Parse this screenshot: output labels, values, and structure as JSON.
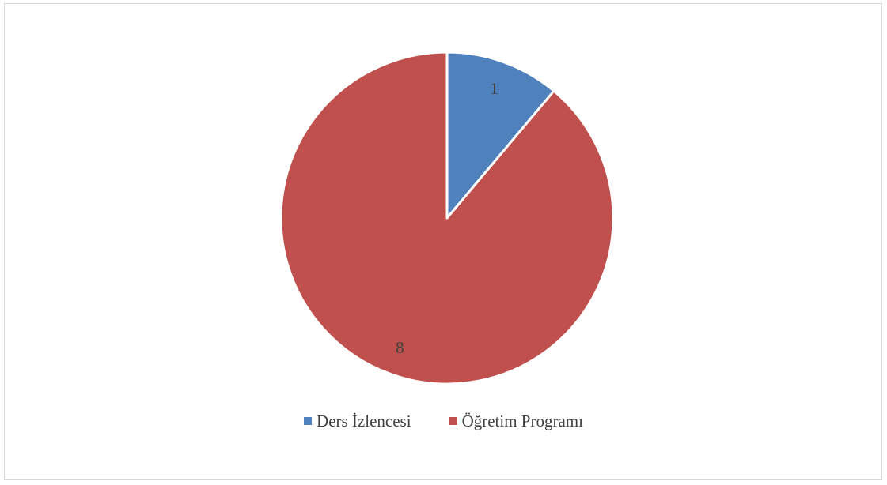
{
  "chart_data": {
    "type": "pie",
    "categories": [
      "Ders İzlencesi",
      "Öğretim Programı"
    ],
    "values": [
      1,
      8
    ],
    "data_labels": [
      "1",
      "8"
    ],
    "colors": [
      "#4f81bd",
      "#c0504d"
    ],
    "legend": "bottom"
  }
}
